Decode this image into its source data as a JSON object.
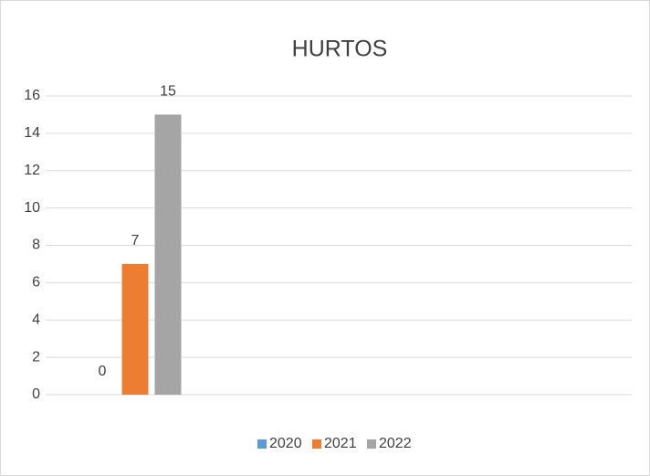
{
  "chart_data": {
    "type": "bar",
    "title": "HURTOS",
    "categories": [
      null
    ],
    "series": [
      {
        "name": "2020",
        "color": "#5b9bd5",
        "values": [
          0
        ]
      },
      {
        "name": "2021",
        "color": "#ed7d31",
        "values": [
          7
        ]
      },
      {
        "name": "2022",
        "color": "#a5a5a5",
        "values": [
          15
        ]
      }
    ],
    "ylim": [
      0,
      16
    ],
    "yticks": [
      0,
      2,
      4,
      6,
      8,
      10,
      12,
      14,
      16
    ],
    "grid": true,
    "legend": "bottom"
  }
}
